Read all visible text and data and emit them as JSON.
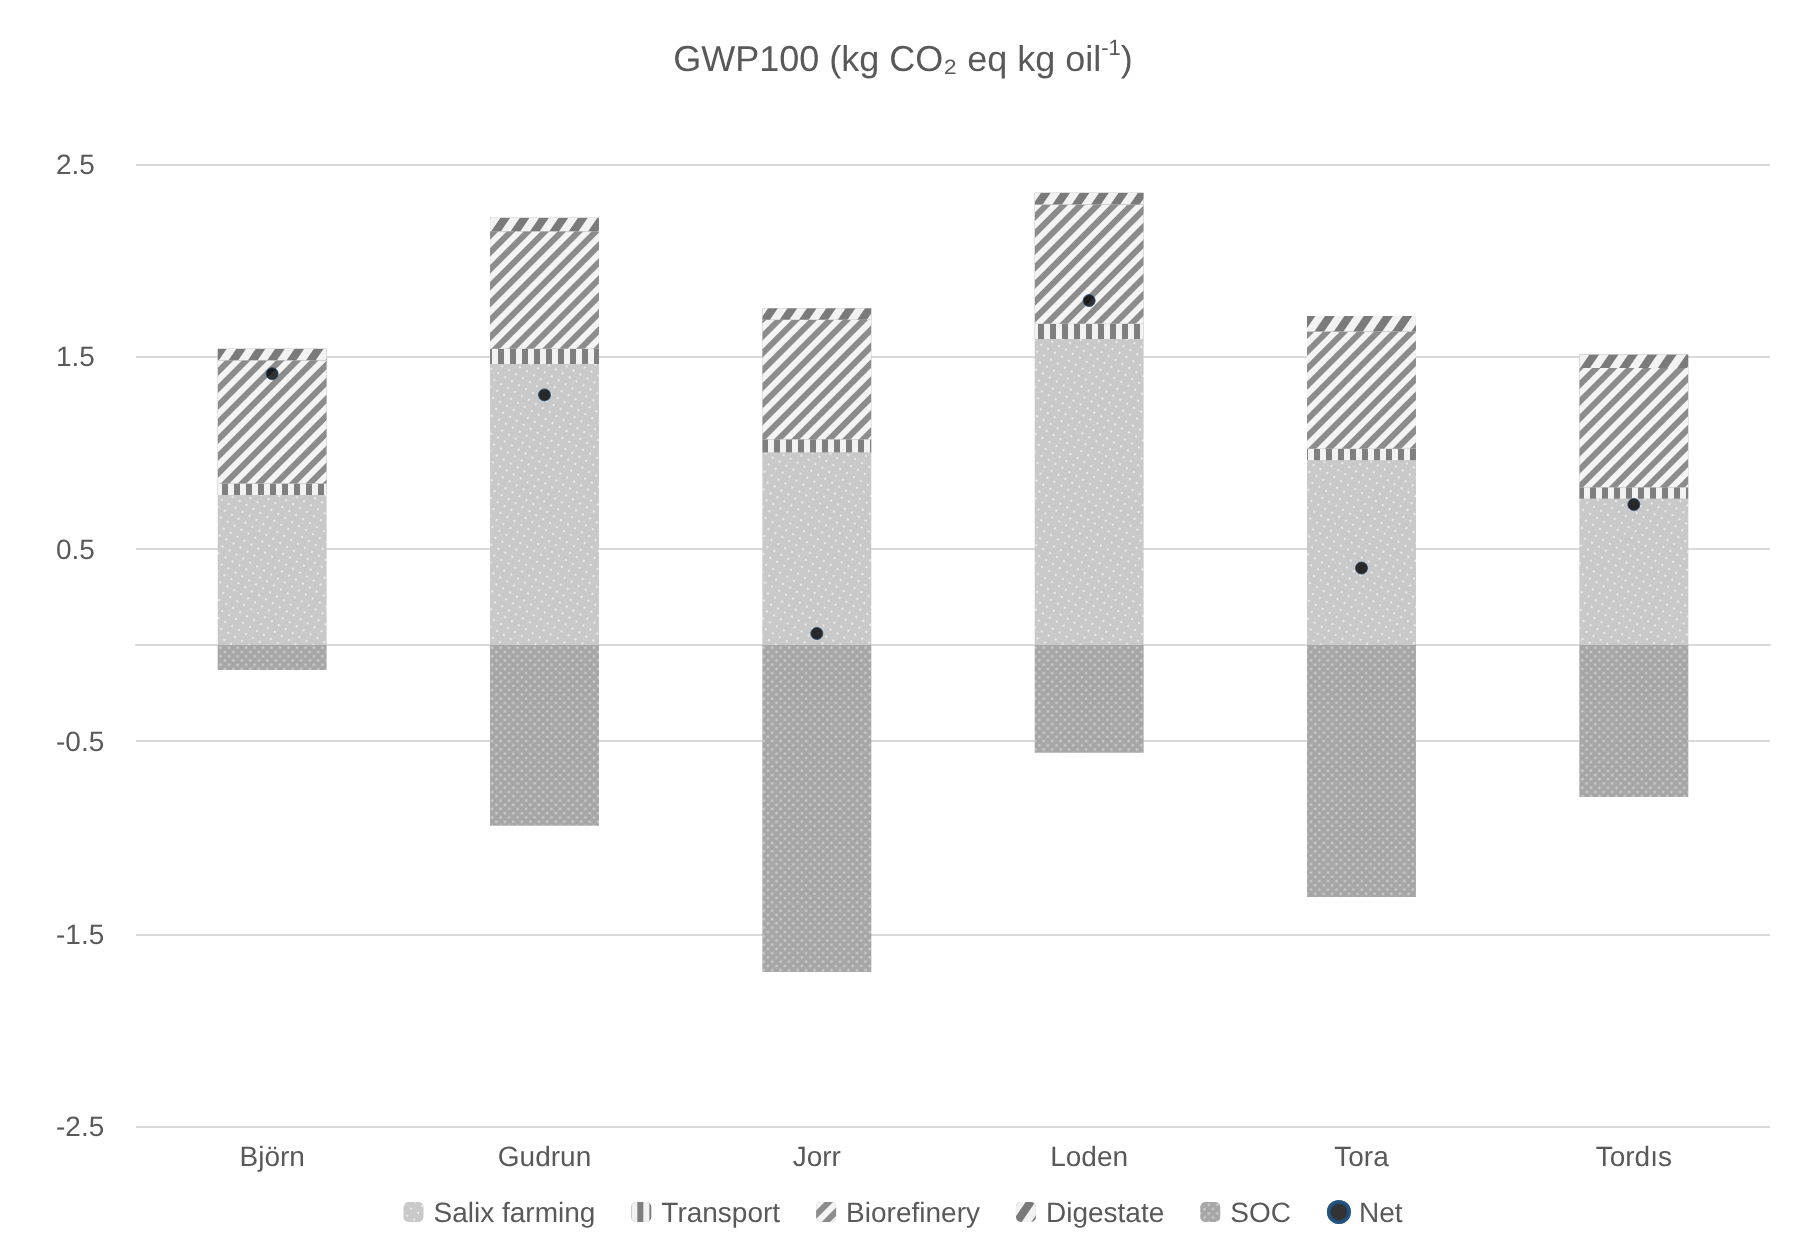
{
  "chart_data": {
    "type": "bar",
    "title": "GWP100 (kg CO₂ eq kg oil$^{-1}$)",
    "categories": [
      "Björn",
      "Gudrun",
      "Jorr",
      "Loden",
      "Tora",
      "Tordıs"
    ],
    "stacked": true,
    "ylim": [
      -2.5,
      2.5
    ],
    "yticks": [
      -2.5,
      -1.5,
      -0.5,
      0.5,
      1.5,
      2.5
    ],
    "grid": "y",
    "legend": "bottom",
    "marker": "circle",
    "series": [
      {
        "name": "Salix farming",
        "color": "#c9c9c9",
        "values": [
          0.78,
          1.46,
          1.0,
          1.59,
          0.96,
          0.76
        ]
      },
      {
        "name": "Transport",
        "color": "#7f7f7f",
        "values": [
          0.06,
          0.08,
          0.07,
          0.08,
          0.06,
          0.06
        ]
      },
      {
        "name": "Biorefinery",
        "color": "#8c8c8c",
        "values": [
          0.64,
          0.61,
          0.62,
          0.62,
          0.61,
          0.62
        ]
      },
      {
        "name": "Digestate",
        "color": "#7a7a7a",
        "values": [
          0.06,
          0.07,
          0.06,
          0.06,
          0.08,
          0.07
        ]
      },
      {
        "name": "SOC",
        "color": "#a6a6a6",
        "values": [
          -0.13,
          -0.94,
          -1.7,
          -0.56,
          -1.31,
          -0.79
        ]
      },
      {
        "name": "Net",
        "type": "scatter",
        "color": "#000000",
        "values": [
          1.41,
          1.3,
          0.06,
          1.79,
          0.4,
          0.73
        ]
      }
    ]
  }
}
